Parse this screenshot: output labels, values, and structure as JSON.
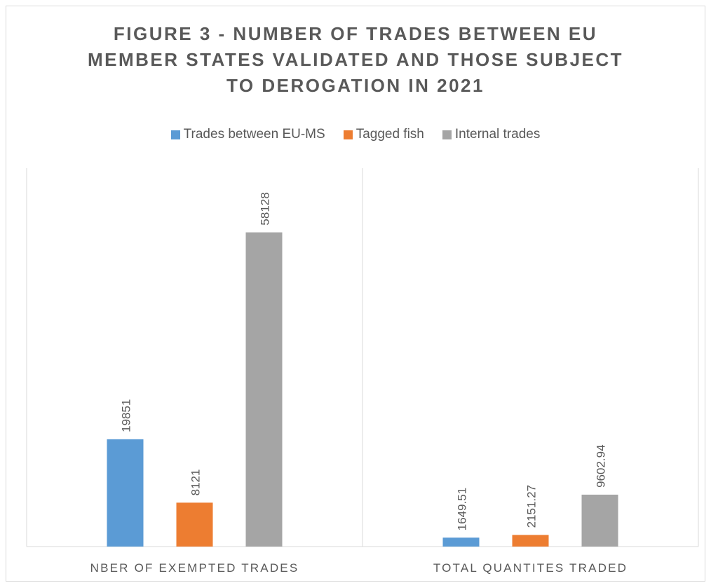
{
  "chart_data": {
    "type": "bar",
    "title_lines": [
      "FIGURE 3 - NUMBER OF TRADES BETWEEN EU",
      "MEMBER STATES VALIDATED AND THOSE SUBJECT",
      "TO DEROGATION IN 2021"
    ],
    "categories": [
      "NBER OF EXEMPTED TRADES",
      "TOTAL QUANTITES TRADED"
    ],
    "series": [
      {
        "name": "Trades between EU-MS",
        "color": "#5b9bd5",
        "values": [
          19851,
          1649.51
        ],
        "labels": [
          "19851",
          "1649.51"
        ]
      },
      {
        "name": "Tagged fish",
        "color": "#ed7d31",
        "values": [
          8121,
          2151.27
        ],
        "labels": [
          "8121",
          "2151.27"
        ]
      },
      {
        "name": "Internal trades",
        "color": "#a5a5a5",
        "values": [
          58128,
          9602.94
        ],
        "labels": [
          "58128",
          "9602.94"
        ]
      }
    ],
    "ylim": [
      0,
      70000
    ],
    "legend_position": "top",
    "grid": false,
    "data_labels": "rotated-vertical"
  }
}
